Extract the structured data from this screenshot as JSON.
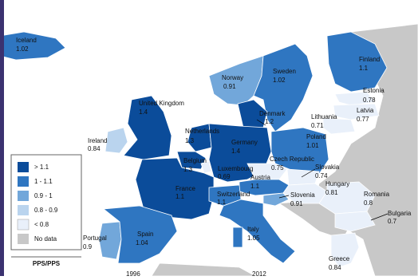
{
  "countries": [
    {
      "name": "Iceland",
      "value": "1.02"
    },
    {
      "name": "Norway",
      "value": "0.91"
    },
    {
      "name": "Sweden",
      "value": "1.02"
    },
    {
      "name": "Finland",
      "value": "1.1"
    },
    {
      "name": "Estonia",
      "value": "0.78"
    },
    {
      "name": "Latvia",
      "value": "0.77"
    },
    {
      "name": "Lithuania",
      "value": "0.71"
    },
    {
      "name": "United Kingdom",
      "value": "1.4"
    },
    {
      "name": "Ireland",
      "value": "0.84"
    },
    {
      "name": "Denmark",
      "value": "1.2"
    },
    {
      "name": "Netherlands",
      "value": "1.3"
    },
    {
      "name": "Germany",
      "value": "1.4"
    },
    {
      "name": "Poland",
      "value": "1.01"
    },
    {
      "name": "Belgium",
      "value": "1.3"
    },
    {
      "name": "Luxembourg",
      "value": "0.69"
    },
    {
      "name": "Czech Republic",
      "value": "0.75"
    },
    {
      "name": "Slovakia",
      "value": "0.74"
    },
    {
      "name": "Austria",
      "value": "1.1"
    },
    {
      "name": "France",
      "value": "1.1"
    },
    {
      "name": "Switzerland",
      "value": "1.1"
    },
    {
      "name": "Slovenia",
      "value": "0.91"
    },
    {
      "name": "Hungary",
      "value": "0.81"
    },
    {
      "name": "Romania",
      "value": "0.8"
    },
    {
      "name": "Bulgaria",
      "value": "0.7"
    },
    {
      "name": "Portugal",
      "value": "0.9"
    },
    {
      "name": "Spain",
      "value": "1.04"
    },
    {
      "name": "Italy",
      "value": "1.05"
    },
    {
      "name": "Greece",
      "value": "0.84"
    }
  ],
  "legend": {
    "items": [
      "> 1.1",
      "1 - 1.1",
      "0.9 - 1",
      "0.8 - 0.9",
      "< 0.8",
      "No data"
    ],
    "title": "PPS/PPS"
  },
  "timeline": [
    "1996",
    "2012"
  ]
}
